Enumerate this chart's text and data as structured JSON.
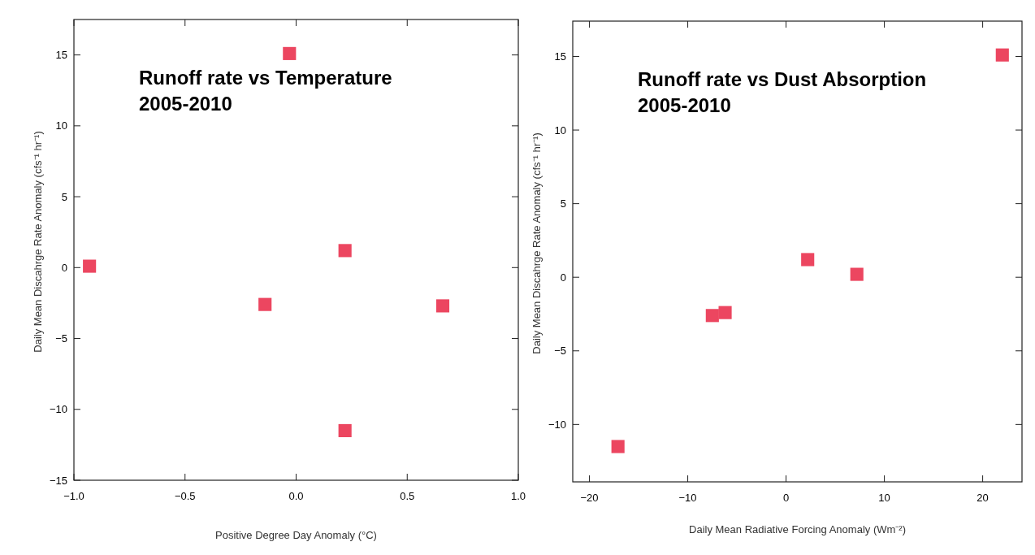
{
  "chart_data": [
    {
      "type": "scatter",
      "title": "Runoff rate vs Temperature\n2005-2010",
      "xlabel": "Positive Degree Day Anomaly (°C)",
      "ylabel": "Daily Mean Discahrge Rate Anomaly (cfs⁻¹ hr⁻¹)",
      "x": [
        -0.93,
        -0.14,
        -0.03,
        0.22,
        0.22,
        0.66
      ],
      "series": [
        {
          "color": "#ec4660",
          "values": [
            0.1,
            -2.6,
            15.1,
            1.2,
            -11.5,
            -2.7
          ]
        }
      ],
      "xlim": [
        -1,
        1
      ],
      "ylim": [
        -15,
        17.5
      ],
      "xticks": [
        {
          "value": -1,
          "label": "−1.0"
        },
        {
          "value": -0.5,
          "label": "−0.5"
        },
        {
          "value": 0,
          "label": "0.0"
        },
        {
          "value": 0.5,
          "label": "0.5"
        },
        {
          "value": 1,
          "label": "1.0"
        }
      ],
      "yticks": [
        {
          "value": -15,
          "label": "−15"
        },
        {
          "value": -10,
          "label": "−10"
        },
        {
          "value": -5,
          "label": "−5"
        },
        0,
        5,
        10,
        15
      ],
      "marker": "square",
      "grid": false
    },
    {
      "type": "scatter",
      "title": "Runoff rate vs Dust Absorption\n2005-2010",
      "xlabel": "Daily Mean Radiative Forcing Anomaly (Wm⁻²)",
      "ylabel": "Daily Mean Discahrge Rate Anomaly (cfs⁻¹ hr⁻¹)",
      "x": [
        -17.1,
        -7.5,
        -6.2,
        2.2,
        7.2,
        22
      ],
      "series": [
        {
          "color": "#ec4660",
          "values": [
            -11.5,
            -2.6,
            -2.4,
            1.2,
            0.2,
            15.1
          ]
        }
      ],
      "xlim": [
        -21.7,
        24
      ],
      "ylim": [
        -13.9,
        17.4
      ],
      "xticks": [
        {
          "value": -20,
          "label": "−20"
        },
        {
          "value": -10,
          "label": "−10"
        },
        0,
        10,
        20
      ],
      "yticks": [
        {
          "value": -10,
          "label": "−10"
        },
        {
          "value": -5,
          "label": "−5"
        },
        0,
        5,
        10,
        15
      ],
      "marker": "square",
      "grid": false
    }
  ]
}
